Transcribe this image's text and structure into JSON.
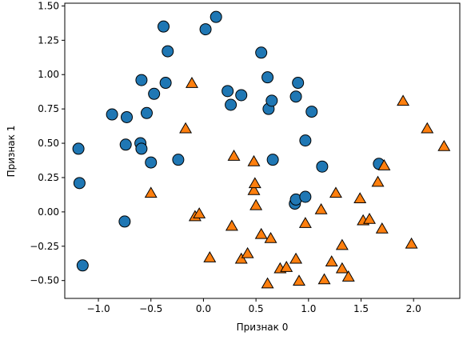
{
  "chart_data": {
    "type": "scatter",
    "xlabel": "Признак 0",
    "ylabel": "Признак 1",
    "xlim": [
      -1.32,
      2.44
    ],
    "ylim": [
      -0.63,
      1.52
    ],
    "x_ticks": [
      -1.0,
      -0.5,
      0.0,
      0.5,
      1.0,
      1.5,
      2.0
    ],
    "x_tick_labels": [
      "−1.0",
      "−0.5",
      "0.0",
      "0.5",
      "1.0",
      "1.5",
      "2.0"
    ],
    "y_ticks": [
      -0.5,
      -0.25,
      0.0,
      0.25,
      0.5,
      0.75,
      1.0,
      1.25,
      1.5
    ],
    "y_tick_labels": [
      "−0.50",
      "−0.25",
      "0.00",
      "0.25",
      "0.50",
      "0.75",
      "1.00",
      "1.25",
      "1.50"
    ],
    "grid": false,
    "series": [
      {
        "marker": "circle",
        "color": "#1f77b4",
        "points": [
          [
            -1.19,
            0.46
          ],
          [
            -1.18,
            0.21
          ],
          [
            -1.15,
            -0.39
          ],
          [
            -0.87,
            0.71
          ],
          [
            -0.73,
            0.69
          ],
          [
            -0.74,
            0.49
          ],
          [
            -0.75,
            -0.07
          ],
          [
            -0.6,
            0.5
          ],
          [
            -0.59,
            0.46
          ],
          [
            -0.54,
            0.72
          ],
          [
            -0.5,
            0.36
          ],
          [
            -0.47,
            0.86
          ],
          [
            -0.59,
            0.96
          ],
          [
            -0.36,
            0.94
          ],
          [
            -0.38,
            1.35
          ],
          [
            -0.34,
            1.17
          ],
          [
            -0.24,
            0.38
          ],
          [
            0.02,
            1.33
          ],
          [
            0.12,
            1.42
          ],
          [
            0.23,
            0.88
          ],
          [
            0.26,
            0.78
          ],
          [
            0.36,
            0.85
          ],
          [
            0.55,
            1.16
          ],
          [
            0.61,
            0.98
          ],
          [
            0.62,
            0.75
          ],
          [
            0.65,
            0.81
          ],
          [
            0.66,
            0.38
          ],
          [
            0.88,
            0.84
          ],
          [
            0.9,
            0.94
          ],
          [
            0.97,
            0.52
          ],
          [
            1.03,
            0.73
          ],
          [
            0.87,
            0.06
          ],
          [
            0.88,
            0.09
          ],
          [
            0.97,
            0.11
          ],
          [
            1.13,
            0.33
          ],
          [
            1.67,
            0.35
          ]
        ]
      },
      {
        "marker": "triangle",
        "color": "#ff7f0e",
        "points": [
          [
            -0.11,
            0.93
          ],
          [
            -0.17,
            0.6
          ],
          [
            -0.5,
            0.13
          ],
          [
            -0.08,
            -0.04
          ],
          [
            -0.04,
            -0.02
          ],
          [
            0.06,
            -0.34
          ],
          [
            0.27,
            -0.11
          ],
          [
            0.29,
            0.4
          ],
          [
            0.36,
            -0.35
          ],
          [
            0.42,
            -0.31
          ],
          [
            0.48,
            0.36
          ],
          [
            0.48,
            0.15
          ],
          [
            0.49,
            0.2
          ],
          [
            0.5,
            0.04
          ],
          [
            0.55,
            -0.17
          ],
          [
            0.61,
            -0.53
          ],
          [
            0.64,
            -0.2
          ],
          [
            0.73,
            -0.42
          ],
          [
            0.79,
            -0.41
          ],
          [
            0.88,
            -0.35
          ],
          [
            0.91,
            -0.51
          ],
          [
            0.97,
            -0.09
          ],
          [
            1.12,
            0.01
          ],
          [
            1.15,
            -0.5
          ],
          [
            1.22,
            -0.37
          ],
          [
            1.26,
            0.13
          ],
          [
            1.32,
            -0.25
          ],
          [
            1.32,
            -0.42
          ],
          [
            1.38,
            -0.48
          ],
          [
            1.49,
            0.09
          ],
          [
            1.52,
            -0.07
          ],
          [
            1.58,
            -0.06
          ],
          [
            1.66,
            0.21
          ],
          [
            1.7,
            -0.13
          ],
          [
            1.72,
            0.33
          ],
          [
            1.9,
            0.8
          ],
          [
            1.98,
            -0.24
          ],
          [
            2.13,
            0.6
          ],
          [
            2.29,
            0.47
          ]
        ]
      }
    ]
  }
}
